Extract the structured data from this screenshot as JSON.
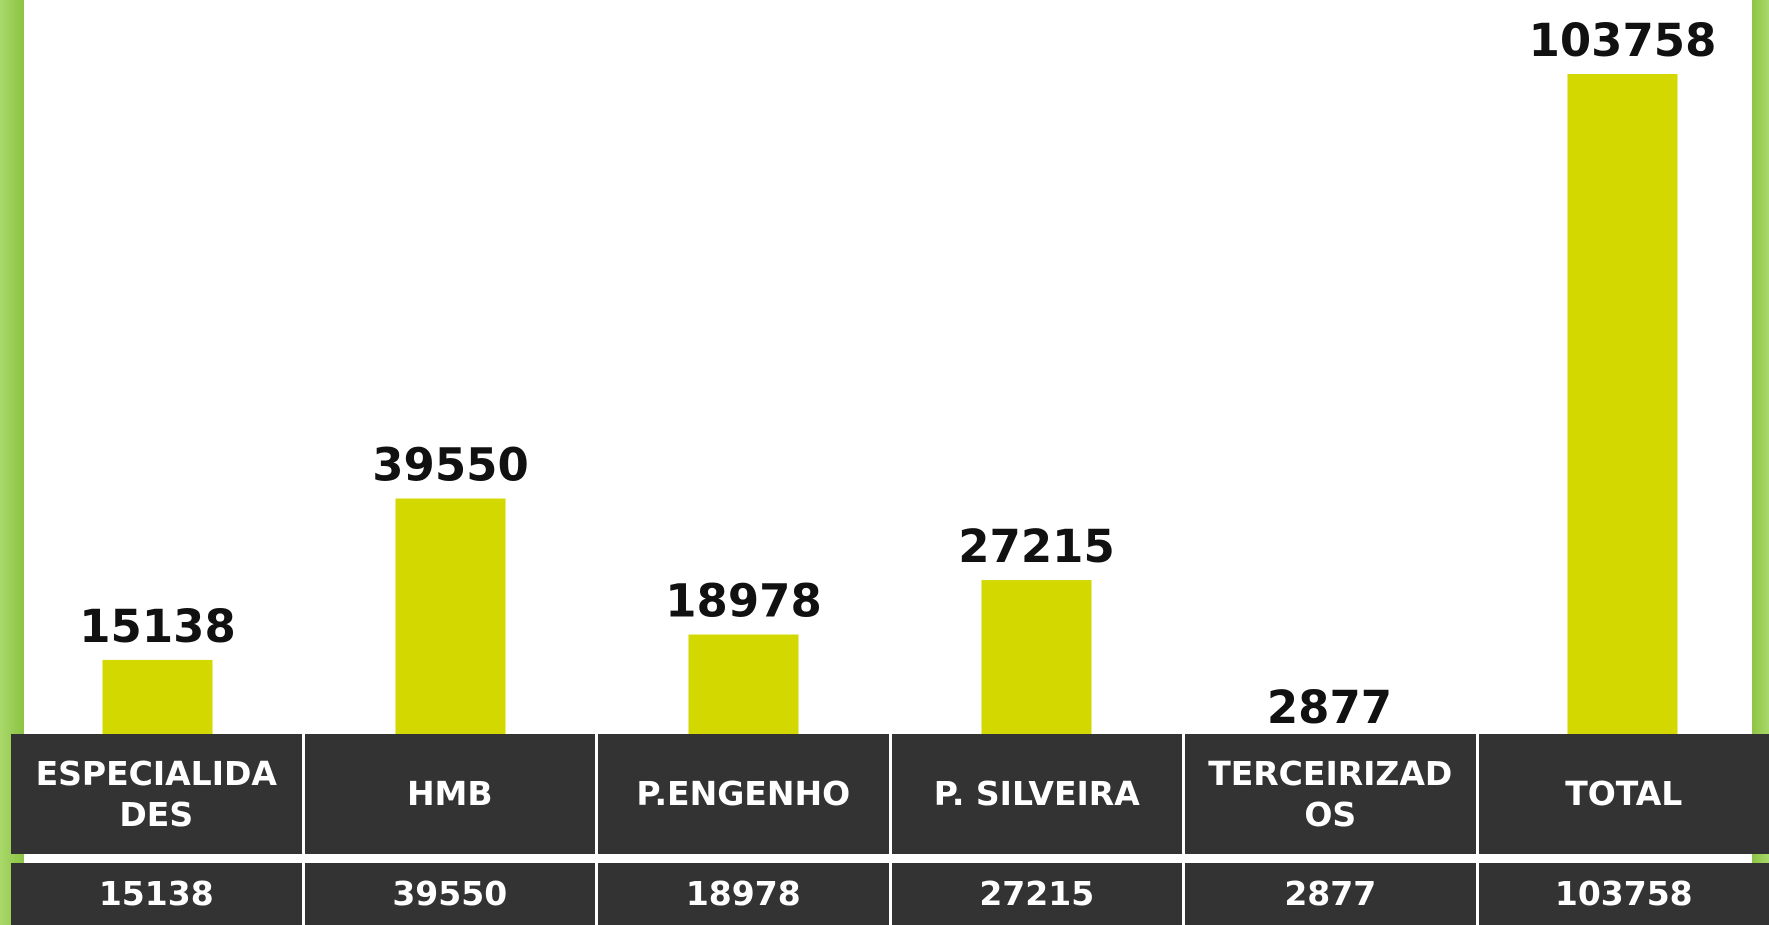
{
  "chart_data": {
    "type": "bar",
    "categories": [
      "ESPECIALIDADES",
      "HMB",
      "P.ENGENHO",
      "P. SILVEIRA",
      "TERCEIRIZADOS",
      "TOTAL"
    ],
    "values": [
      15138,
      39550,
      18978,
      27215,
      2877,
      103758
    ],
    "color": "#d2d800"
  }
}
